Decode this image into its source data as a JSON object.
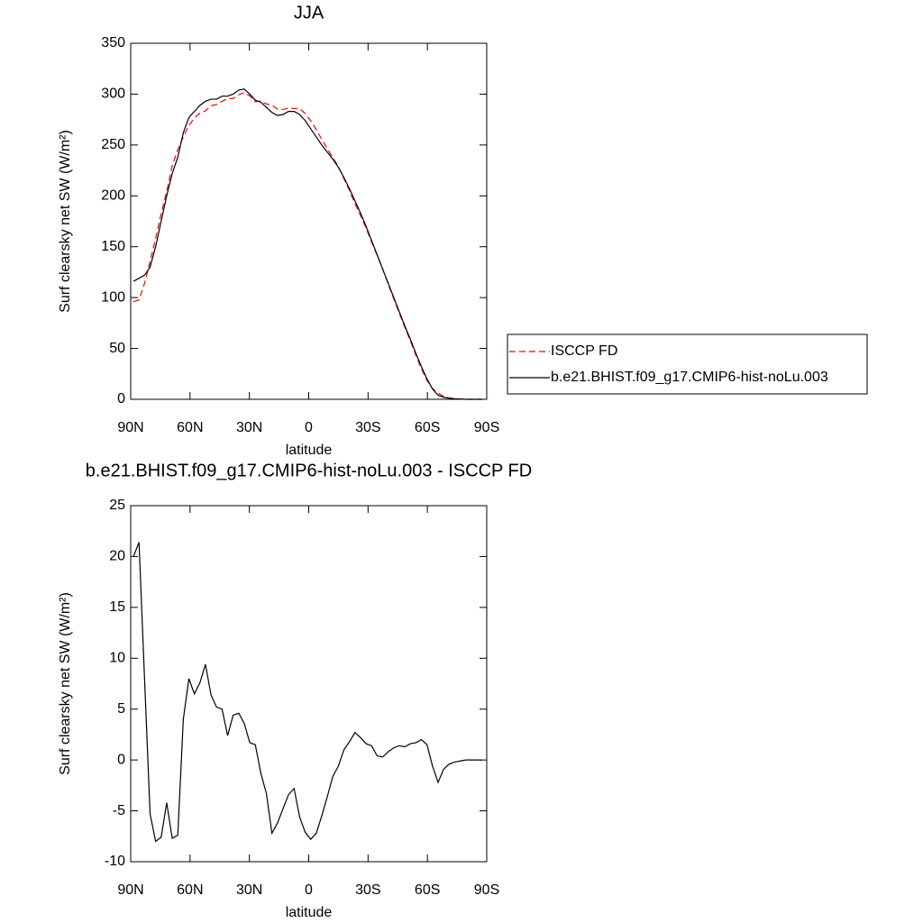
{
  "chart_data": [
    {
      "type": "line",
      "title": "JJA",
      "x_label": "latitude",
      "y_label": "Surf clearsky net SW (W/m²)",
      "x": [
        88.6,
        85.8,
        83.0,
        80.2,
        77.4,
        74.6,
        71.8,
        69.0,
        66.2,
        63.4,
        60.6,
        57.8,
        55.0,
        52.2,
        49.4,
        46.6,
        43.8,
        41.0,
        38.2,
        35.4,
        32.6,
        29.8,
        27.0,
        24.2,
        21.4,
        18.6,
        15.8,
        13.0,
        10.2,
        7.4,
        4.6,
        1.8,
        -1.0,
        -3.8,
        -6.6,
        -9.4,
        -12.2,
        -15.0,
        -17.8,
        -20.6,
        -23.4,
        -26.2,
        -29.0,
        -31.8,
        -34.6,
        -37.4,
        -40.2,
        -43.0,
        -45.8,
        -48.6,
        -51.4,
        -54.2,
        -57.0,
        -59.8,
        -62.6,
        -65.4,
        -68.2,
        -71.0,
        -73.8,
        -76.6,
        -79.4,
        -82.2,
        -85.0,
        -87.8
      ],
      "series": [
        {
          "name": "ISCCP FD",
          "color": "#ff0000",
          "line_style": "dashed",
          "values": [
            96,
            97.6,
            114,
            135.3,
            158,
            182.6,
            204.2,
            229.7,
            245.4,
            258,
            269,
            276.5,
            281.4,
            283.6,
            288.6,
            289.8,
            293,
            295.6,
            295.6,
            299.4,
            301.4,
            298.3,
            292.5,
            293.3,
            290.3,
            289.2,
            285.2,
            284.8,
            286.4,
            285.8,
            285.6,
            281.1,
            273.8,
            265.2,
            255.5,
            246.6,
            237.6,
            228.6,
            217,
            205.2,
            192.3,
            180.8,
            168.4,
            154.6,
            141.6,
            127.7,
            113.2,
            98.8,
            84.6,
            70.7,
            57.4,
            43.3,
            30,
            18.5,
            10.6,
            6.2,
            2.9,
            1.4,
            0.7,
            0.3,
            0,
            0,
            0,
            0
          ]
        },
        {
          "name": "b.e21.BHIST.f09_g17.CMIP6-hist-noLu.003",
          "color": "#000000",
          "line_style": "solid",
          "values": [
            116,
            119,
            122,
            130,
            150,
            175,
            200,
            222,
            238,
            262,
            277,
            283,
            289,
            293,
            295,
            295,
            298,
            298,
            300,
            304,
            305,
            300,
            294,
            292,
            287,
            282,
            279,
            280,
            283,
            283,
            280,
            274,
            266,
            258,
            250,
            243,
            236,
            228,
            218,
            207,
            195,
            183,
            170,
            156,
            142,
            128,
            114,
            100,
            86,
            72,
            59,
            45,
            32,
            20,
            10,
            4,
            2,
            1,
            0.5,
            0.2,
            0,
            0,
            0,
            0
          ]
        }
      ],
      "xlim": [
        90,
        -90
      ],
      "xticks": [
        {
          "value": 90,
          "label": "90N"
        },
        {
          "value": 60,
          "label": "60N"
        },
        {
          "value": 30,
          "label": "30N"
        },
        0,
        {
          "value": -30,
          "label": "30S"
        },
        {
          "value": -60,
          "label": "60S"
        },
        {
          "value": -90,
          "label": "90S"
        }
      ],
      "ylim": [
        0,
        350
      ],
      "yticks": [
        0,
        50,
        100,
        150,
        200,
        250,
        300,
        350
      ],
      "legend": "right"
    },
    {
      "type": "line",
      "title": "b.e21.BHIST.f09_g17.CMIP6-hist-noLu.003 - ISCCP FD",
      "x_label": "latitude",
      "y_label": "Surf clearsky net SW (W/m²)",
      "x": [
        88.6,
        85.8,
        83.0,
        80.2,
        77.4,
        74.6,
        71.8,
        69.0,
        66.2,
        63.4,
        60.6,
        57.8,
        55.0,
        52.2,
        49.4,
        46.6,
        43.8,
        41.0,
        38.2,
        35.4,
        32.6,
        29.8,
        27.0,
        24.2,
        21.4,
        18.6,
        15.8,
        13.0,
        10.2,
        7.4,
        4.6,
        1.8,
        -1.0,
        -3.8,
        -6.6,
        -9.4,
        -12.2,
        -15.0,
        -17.8,
        -20.6,
        -23.4,
        -26.2,
        -29.0,
        -31.8,
        -34.6,
        -37.4,
        -40.2,
        -43.0,
        -45.8,
        -48.6,
        -51.4,
        -54.2,
        -57.0,
        -59.8,
        -62.6,
        -65.4,
        -68.2,
        -71.0,
        -73.8,
        -76.6,
        -79.4,
        -82.2,
        -85.0,
        -87.8
      ],
      "series": [
        {
          "color": "#000000",
          "line_style": "solid",
          "values": [
            20,
            21.4,
            8,
            -5.3,
            -8,
            -7.6,
            -4.2,
            -7.7,
            -7.4,
            4,
            8,
            6.5,
            7.6,
            9.4,
            6.4,
            5.2,
            5,
            2.4,
            4.4,
            4.6,
            3.6,
            1.7,
            1.5,
            -1.3,
            -3.3,
            -7.2,
            -6.2,
            -4.8,
            -3.4,
            -2.8,
            -5.6,
            -7.1,
            -7.8,
            -7.2,
            -5.5,
            -3.6,
            -1.6,
            -0.6,
            1.0,
            1.8,
            2.7,
            2.2,
            1.6,
            1.4,
            0.4,
            0.3,
            0.8,
            1.2,
            1.4,
            1.3,
            1.6,
            1.7,
            2.0,
            1.5,
            -0.6,
            -2.2,
            -0.9,
            -0.4,
            -0.2,
            -0.1,
            0,
            0,
            0,
            0
          ]
        }
      ],
      "xlim": [
        90,
        -90
      ],
      "xticks": [
        {
          "value": 90,
          "label": "90N"
        },
        {
          "value": 60,
          "label": "60N"
        },
        {
          "value": 30,
          "label": "30N"
        },
        0,
        {
          "value": -30,
          "label": "30S"
        },
        {
          "value": -60,
          "label": "60S"
        },
        {
          "value": -90,
          "label": "90S"
        }
      ],
      "ylim": [
        -10,
        25
      ],
      "yticks": [
        -10,
        -5,
        0,
        5,
        10,
        15,
        20,
        25
      ]
    }
  ]
}
